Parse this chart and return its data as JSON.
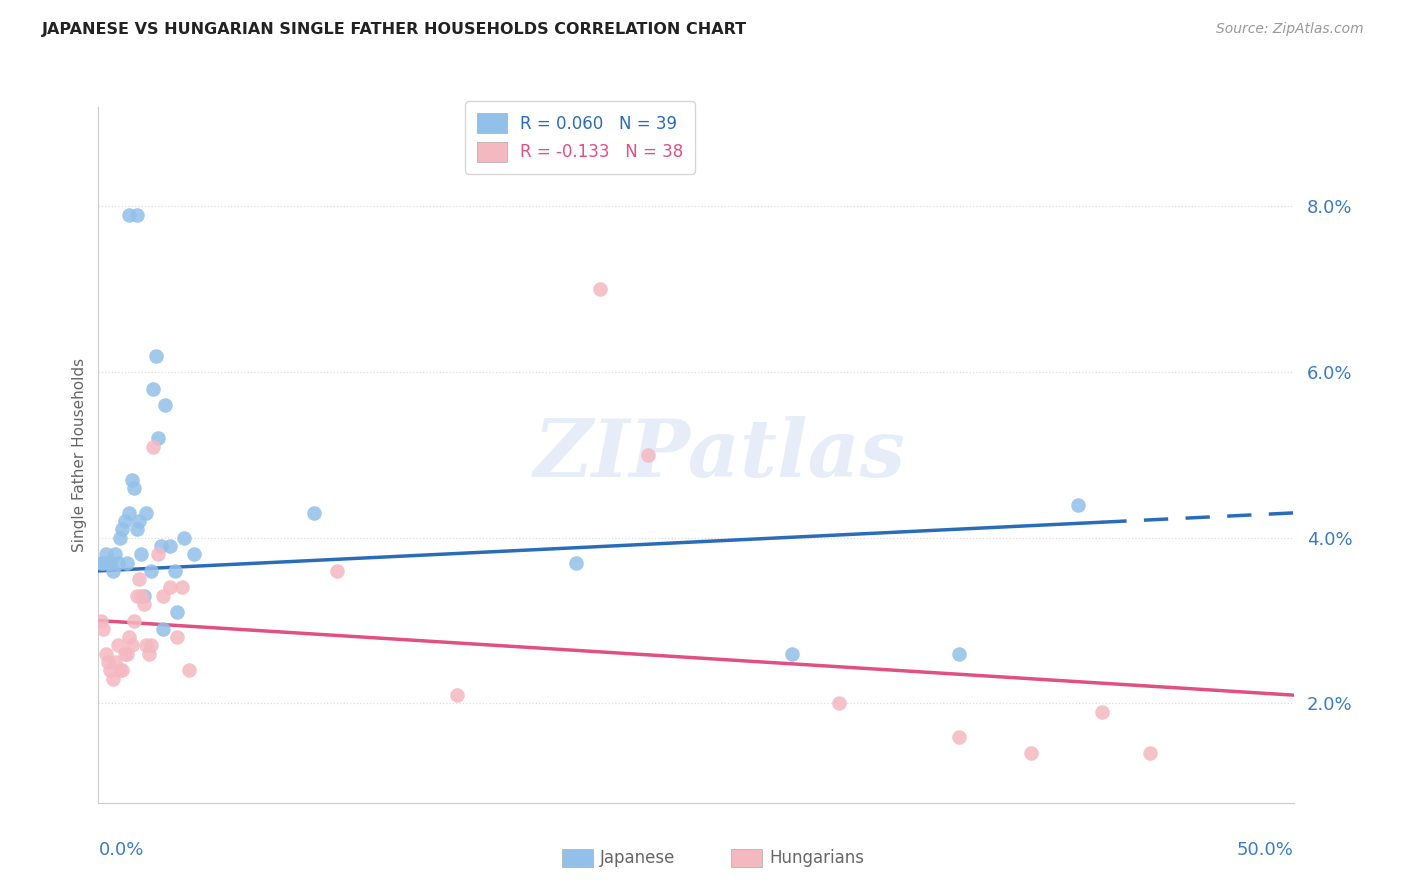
{
  "title": "JAPANESE VS HUNGARIAN SINGLE FATHER HOUSEHOLDS CORRELATION CHART",
  "source": "Source: ZipAtlas.com",
  "ylabel": "Single Father Households",
  "yticks": [
    "2.0%",
    "4.0%",
    "6.0%",
    "8.0%"
  ],
  "ytick_vals": [
    0.02,
    0.04,
    0.06,
    0.08
  ],
  "xlim": [
    0.0,
    0.5
  ],
  "ylim": [
    0.008,
    0.092
  ],
  "legend_japanese": "R = 0.060   N = 39",
  "legend_hungarian": "R = -0.133   N = 38",
  "japanese_color": "#92c0e8",
  "hungarian_color": "#f4b8c1",
  "japanese_line_color": "#2b6cb8",
  "hungarian_line_color": "#e05080",
  "background_color": "#ffffff",
  "watermark": "ZIPatlas",
  "japanese_points": [
    [
      0.001,
      0.037
    ],
    [
      0.002,
      0.037
    ],
    [
      0.003,
      0.038
    ],
    [
      0.004,
      0.037
    ],
    [
      0.005,
      0.037
    ],
    [
      0.006,
      0.036
    ],
    [
      0.007,
      0.038
    ],
    [
      0.008,
      0.037
    ],
    [
      0.009,
      0.04
    ],
    [
      0.01,
      0.041
    ],
    [
      0.011,
      0.042
    ],
    [
      0.012,
      0.037
    ],
    [
      0.013,
      0.043
    ],
    [
      0.014,
      0.047
    ],
    [
      0.015,
      0.046
    ],
    [
      0.016,
      0.041
    ],
    [
      0.017,
      0.042
    ],
    [
      0.018,
      0.038
    ],
    [
      0.019,
      0.033
    ],
    [
      0.02,
      0.043
    ],
    [
      0.022,
      0.036
    ],
    [
      0.023,
      0.058
    ],
    [
      0.024,
      0.062
    ],
    [
      0.025,
      0.052
    ],
    [
      0.026,
      0.039
    ],
    [
      0.027,
      0.029
    ],
    [
      0.028,
      0.056
    ],
    [
      0.03,
      0.039
    ],
    [
      0.032,
      0.036
    ],
    [
      0.033,
      0.031
    ],
    [
      0.036,
      0.04
    ],
    [
      0.04,
      0.038
    ],
    [
      0.013,
      0.079
    ],
    [
      0.016,
      0.079
    ],
    [
      0.09,
      0.043
    ],
    [
      0.2,
      0.037
    ],
    [
      0.29,
      0.026
    ],
    [
      0.36,
      0.026
    ],
    [
      0.41,
      0.044
    ]
  ],
  "hungarian_points": [
    [
      0.001,
      0.03
    ],
    [
      0.002,
      0.029
    ],
    [
      0.003,
      0.026
    ],
    [
      0.004,
      0.025
    ],
    [
      0.005,
      0.024
    ],
    [
      0.006,
      0.023
    ],
    [
      0.007,
      0.025
    ],
    [
      0.008,
      0.027
    ],
    [
      0.009,
      0.024
    ],
    [
      0.01,
      0.024
    ],
    [
      0.011,
      0.026
    ],
    [
      0.012,
      0.026
    ],
    [
      0.013,
      0.028
    ],
    [
      0.014,
      0.027
    ],
    [
      0.015,
      0.03
    ],
    [
      0.016,
      0.033
    ],
    [
      0.017,
      0.035
    ],
    [
      0.018,
      0.033
    ],
    [
      0.019,
      0.032
    ],
    [
      0.02,
      0.027
    ],
    [
      0.021,
      0.026
    ],
    [
      0.022,
      0.027
    ],
    [
      0.023,
      0.051
    ],
    [
      0.025,
      0.038
    ],
    [
      0.027,
      0.033
    ],
    [
      0.03,
      0.034
    ],
    [
      0.033,
      0.028
    ],
    [
      0.035,
      0.034
    ],
    [
      0.038,
      0.024
    ],
    [
      0.1,
      0.036
    ],
    [
      0.15,
      0.021
    ],
    [
      0.21,
      0.07
    ],
    [
      0.23,
      0.05
    ],
    [
      0.31,
      0.02
    ],
    [
      0.36,
      0.016
    ],
    [
      0.39,
      0.014
    ],
    [
      0.42,
      0.019
    ],
    [
      0.44,
      0.014
    ]
  ],
  "japanese_line_x": [
    0.0,
    0.5
  ],
  "japanese_line_y": [
    0.036,
    0.043
  ],
  "japanese_line_solid_end": 0.42,
  "hungarian_line_x": [
    0.0,
    0.5
  ],
  "hungarian_line_y": [
    0.03,
    0.021
  ],
  "grid_color": "#dddddd",
  "spine_color": "#cccccc",
  "tick_label_color": "#3a7cc4",
  "axis_label_color": "#666666",
  "title_color": "#222222",
  "source_color": "#999999"
}
